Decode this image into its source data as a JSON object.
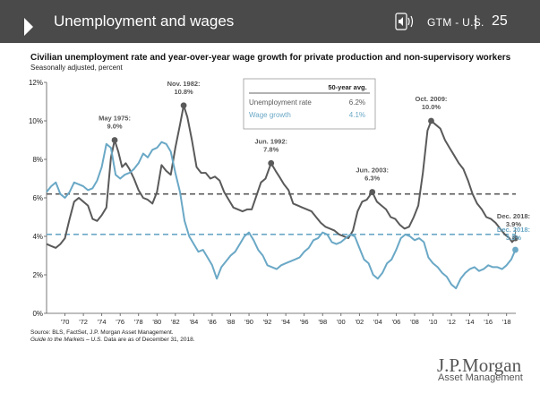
{
  "header": {
    "title": "Unemployment and wages",
    "speaker_icon": "speaker-icon",
    "section": "GTM - U.S.",
    "separator": "|",
    "page_number": "25",
    "background_color": "#4a4a4a"
  },
  "chart_title": "Civilian unemployment rate and year-over-year wage growth for private production and non-supervisory workers",
  "chart_subtitle": "Seasonally adjusted, percent",
  "source": {
    "line1": "Source: BLS, FactSet, J.P. Morgan Asset Management.",
    "line2_italic": "Guide to the Markets – U.S.",
    "line2_rest": "Data are as of December 31, 2018."
  },
  "logo": {
    "name": "J.P.Morgan",
    "tagline": "Asset Management"
  },
  "chart_data": {
    "type": "line",
    "x_range": [
      1968,
      2019
    ],
    "ylim": [
      0,
      12
    ],
    "y_ticks": [
      {
        "value": 0,
        "label": "0%"
      },
      {
        "value": 2,
        "label": "2%"
      },
      {
        "value": 4,
        "label": "4%"
      },
      {
        "value": 6,
        "label": "6%"
      },
      {
        "value": 8,
        "label": "8%"
      },
      {
        "value": 10,
        "label": "10%"
      },
      {
        "value": 12,
        "label": "12%"
      }
    ],
    "x_ticks": [
      {
        "value": 1970,
        "label": "'70"
      },
      {
        "value": 1972,
        "label": "'72"
      },
      {
        "value": 1974,
        "label": "'74"
      },
      {
        "value": 1976,
        "label": "'76"
      },
      {
        "value": 1978,
        "label": "'78"
      },
      {
        "value": 1980,
        "label": "'80"
      },
      {
        "value": 1982,
        "label": "'82"
      },
      {
        "value": 1984,
        "label": "'84"
      },
      {
        "value": 1986,
        "label": "'86"
      },
      {
        "value": 1988,
        "label": "'88"
      },
      {
        "value": 1990,
        "label": "'90"
      },
      {
        "value": 1992,
        "label": "'92"
      },
      {
        "value": 1994,
        "label": "'94"
      },
      {
        "value": 1996,
        "label": "'96"
      },
      {
        "value": 1998,
        "label": "'98"
      },
      {
        "value": 2000,
        "label": "'00"
      },
      {
        "value": 2002,
        "label": "'02"
      },
      {
        "value": 2004,
        "label": "'04"
      },
      {
        "value": 2006,
        "label": "'06"
      },
      {
        "value": 2008,
        "label": "'08"
      },
      {
        "value": 2010,
        "label": "'10"
      },
      {
        "value": 2012,
        "label": "'12"
      },
      {
        "value": 2014,
        "label": "'14"
      },
      {
        "value": 2016,
        "label": "'16"
      },
      {
        "value": 2018,
        "label": "'18"
      }
    ],
    "series": [
      {
        "name": "Unemployment rate",
        "color": "#5a5a5a",
        "average": 6.2,
        "points": [
          [
            1968.0,
            3.6
          ],
          [
            1968.5,
            3.5
          ],
          [
            1969.0,
            3.4
          ],
          [
            1969.5,
            3.6
          ],
          [
            1970.0,
            3.9
          ],
          [
            1970.5,
            4.9
          ],
          [
            1971.0,
            5.8
          ],
          [
            1971.5,
            6.0
          ],
          [
            1972.0,
            5.8
          ],
          [
            1972.5,
            5.6
          ],
          [
            1973.0,
            4.9
          ],
          [
            1973.5,
            4.8
          ],
          [
            1974.0,
            5.1
          ],
          [
            1974.5,
            5.5
          ],
          [
            1975.0,
            8.1
          ],
          [
            1975.4,
            9.0
          ],
          [
            1975.8,
            8.4
          ],
          [
            1976.2,
            7.6
          ],
          [
            1976.6,
            7.8
          ],
          [
            1977.0,
            7.5
          ],
          [
            1977.5,
            7.0
          ],
          [
            1978.0,
            6.4
          ],
          [
            1978.5,
            6.0
          ],
          [
            1979.0,
            5.9
          ],
          [
            1979.5,
            5.7
          ],
          [
            1980.0,
            6.3
          ],
          [
            1980.5,
            7.7
          ],
          [
            1981.0,
            7.4
          ],
          [
            1981.5,
            7.2
          ],
          [
            1982.0,
            8.6
          ],
          [
            1982.5,
            9.8
          ],
          [
            1982.9,
            10.8
          ],
          [
            1983.3,
            10.2
          ],
          [
            1983.8,
            9.0
          ],
          [
            1984.3,
            7.6
          ],
          [
            1984.8,
            7.3
          ],
          [
            1985.3,
            7.3
          ],
          [
            1985.8,
            7.0
          ],
          [
            1986.3,
            7.1
          ],
          [
            1986.8,
            6.9
          ],
          [
            1987.3,
            6.3
          ],
          [
            1987.8,
            5.9
          ],
          [
            1988.3,
            5.5
          ],
          [
            1988.8,
            5.4
          ],
          [
            1989.3,
            5.3
          ],
          [
            1989.8,
            5.4
          ],
          [
            1990.3,
            5.4
          ],
          [
            1990.8,
            6.1
          ],
          [
            1991.3,
            6.8
          ],
          [
            1991.8,
            7.0
          ],
          [
            1992.4,
            7.8
          ],
          [
            1992.9,
            7.4
          ],
          [
            1993.3,
            7.1
          ],
          [
            1993.8,
            6.7
          ],
          [
            1994.3,
            6.4
          ],
          [
            1994.8,
            5.7
          ],
          [
            1995.3,
            5.6
          ],
          [
            1995.8,
            5.5
          ],
          [
            1996.3,
            5.4
          ],
          [
            1996.8,
            5.3
          ],
          [
            1997.3,
            5.0
          ],
          [
            1997.8,
            4.7
          ],
          [
            1998.3,
            4.5
          ],
          [
            1998.8,
            4.4
          ],
          [
            1999.3,
            4.3
          ],
          [
            1999.8,
            4.1
          ],
          [
            2000.3,
            4.0
          ],
          [
            2000.8,
            3.9
          ],
          [
            2001.3,
            4.3
          ],
          [
            2001.8,
            5.3
          ],
          [
            2002.3,
            5.8
          ],
          [
            2002.8,
            5.9
          ],
          [
            2003.4,
            6.3
          ],
          [
            2003.9,
            5.8
          ],
          [
            2004.4,
            5.6
          ],
          [
            2004.9,
            5.4
          ],
          [
            2005.4,
            5.0
          ],
          [
            2005.9,
            4.9
          ],
          [
            2006.4,
            4.6
          ],
          [
            2006.9,
            4.4
          ],
          [
            2007.4,
            4.5
          ],
          [
            2007.9,
            5.0
          ],
          [
            2008.4,
            5.6
          ],
          [
            2008.9,
            7.3
          ],
          [
            2009.4,
            9.5
          ],
          [
            2009.8,
            10.0
          ],
          [
            2010.3,
            9.8
          ],
          [
            2010.8,
            9.6
          ],
          [
            2011.3,
            9.0
          ],
          [
            2011.8,
            8.6
          ],
          [
            2012.3,
            8.2
          ],
          [
            2012.8,
            7.8
          ],
          [
            2013.3,
            7.5
          ],
          [
            2013.8,
            6.9
          ],
          [
            2014.3,
            6.2
          ],
          [
            2014.8,
            5.7
          ],
          [
            2015.3,
            5.4
          ],
          [
            2015.8,
            5.0
          ],
          [
            2016.3,
            4.9
          ],
          [
            2016.8,
            4.7
          ],
          [
            2017.3,
            4.4
          ],
          [
            2017.8,
            4.1
          ],
          [
            2018.3,
            3.9
          ],
          [
            2018.6,
            3.7
          ],
          [
            2018.95,
            3.9
          ]
        ]
      },
      {
        "name": "Wage growth",
        "color": "#6aa8c6",
        "average": 4.1,
        "points": [
          [
            1968.0,
            6.3
          ],
          [
            1968.5,
            6.6
          ],
          [
            1969.0,
            6.8
          ],
          [
            1969.5,
            6.2
          ],
          [
            1970.0,
            6.0
          ],
          [
            1970.5,
            6.3
          ],
          [
            1971.0,
            6.8
          ],
          [
            1971.5,
            6.7
          ],
          [
            1972.0,
            6.6
          ],
          [
            1972.5,
            6.4
          ],
          [
            1973.0,
            6.5
          ],
          [
            1973.5,
            6.9
          ],
          [
            1974.0,
            7.6
          ],
          [
            1974.5,
            8.8
          ],
          [
            1975.0,
            8.6
          ],
          [
            1975.5,
            7.2
          ],
          [
            1976.0,
            7.0
          ],
          [
            1976.5,
            7.2
          ],
          [
            1977.0,
            7.3
          ],
          [
            1977.5,
            7.5
          ],
          [
            1978.0,
            7.8
          ],
          [
            1978.5,
            8.3
          ],
          [
            1979.0,
            8.1
          ],
          [
            1979.5,
            8.5
          ],
          [
            1980.0,
            8.6
          ],
          [
            1980.5,
            8.9
          ],
          [
            1981.0,
            8.8
          ],
          [
            1981.5,
            8.4
          ],
          [
            1982.0,
            7.3
          ],
          [
            1982.5,
            6.3
          ],
          [
            1983.0,
            4.8
          ],
          [
            1983.5,
            4.0
          ],
          [
            1984.0,
            3.6
          ],
          [
            1984.5,
            3.2
          ],
          [
            1985.0,
            3.3
          ],
          [
            1985.5,
            2.9
          ],
          [
            1986.0,
            2.5
          ],
          [
            1986.5,
            1.8
          ],
          [
            1987.0,
            2.4
          ],
          [
            1987.5,
            2.7
          ],
          [
            1988.0,
            3.0
          ],
          [
            1988.5,
            3.2
          ],
          [
            1989.0,
            3.6
          ],
          [
            1989.5,
            4.0
          ],
          [
            1990.0,
            4.2
          ],
          [
            1990.5,
            3.8
          ],
          [
            1991.0,
            3.3
          ],
          [
            1991.5,
            3.0
          ],
          [
            1992.0,
            2.5
          ],
          [
            1992.5,
            2.4
          ],
          [
            1993.0,
            2.3
          ],
          [
            1993.5,
            2.5
          ],
          [
            1994.0,
            2.6
          ],
          [
            1994.5,
            2.7
          ],
          [
            1995.0,
            2.8
          ],
          [
            1995.5,
            2.9
          ],
          [
            1996.0,
            3.2
          ],
          [
            1996.5,
            3.4
          ],
          [
            1997.0,
            3.8
          ],
          [
            1997.5,
            3.9
          ],
          [
            1998.0,
            4.2
          ],
          [
            1998.5,
            4.1
          ],
          [
            1999.0,
            3.7
          ],
          [
            1999.5,
            3.6
          ],
          [
            2000.0,
            3.7
          ],
          [
            2000.5,
            3.9
          ],
          [
            2001.0,
            4.1
          ],
          [
            2001.5,
            4.0
          ],
          [
            2002.0,
            3.4
          ],
          [
            2002.5,
            2.8
          ],
          [
            2003.0,
            2.6
          ],
          [
            2003.5,
            2.0
          ],
          [
            2004.0,
            1.8
          ],
          [
            2004.5,
            2.1
          ],
          [
            2005.0,
            2.6
          ],
          [
            2005.5,
            2.8
          ],
          [
            2006.0,
            3.3
          ],
          [
            2006.5,
            3.9
          ],
          [
            2007.0,
            4.1
          ],
          [
            2007.5,
            4.0
          ],
          [
            2008.0,
            3.8
          ],
          [
            2008.5,
            3.9
          ],
          [
            2009.0,
            3.7
          ],
          [
            2009.5,
            2.9
          ],
          [
            2010.0,
            2.6
          ],
          [
            2010.5,
            2.4
          ],
          [
            2011.0,
            2.1
          ],
          [
            2011.5,
            1.9
          ],
          [
            2012.0,
            1.5
          ],
          [
            2012.5,
            1.3
          ],
          [
            2013.0,
            1.8
          ],
          [
            2013.5,
            2.1
          ],
          [
            2014.0,
            2.3
          ],
          [
            2014.5,
            2.4
          ],
          [
            2015.0,
            2.2
          ],
          [
            2015.5,
            2.3
          ],
          [
            2016.0,
            2.5
          ],
          [
            2016.5,
            2.4
          ],
          [
            2017.0,
            2.4
          ],
          [
            2017.5,
            2.3
          ],
          [
            2018.0,
            2.5
          ],
          [
            2018.5,
            2.8
          ],
          [
            2018.95,
            3.3
          ]
        ]
      }
    ],
    "annotations": [
      {
        "x": 1975.4,
        "y": 9.0,
        "series": "Unemployment rate",
        "label_lines": [
          "May 1975:",
          "9.0%"
        ]
      },
      {
        "x": 1982.9,
        "y": 10.8,
        "series": "Unemployment rate",
        "label_lines": [
          "Nov. 1982:",
          "10.8%"
        ]
      },
      {
        "x": 1992.4,
        "y": 7.8,
        "series": "Unemployment rate",
        "label_lines": [
          "Jun. 1992:",
          "7.8%"
        ]
      },
      {
        "x": 2003.4,
        "y": 6.3,
        "series": "Unemployment rate",
        "label_lines": [
          "Jun. 2003:",
          "6.3%"
        ]
      },
      {
        "x": 2009.8,
        "y": 10.0,
        "series": "Unemployment rate",
        "label_lines": [
          "Oct. 2009:",
          "10.0%"
        ]
      },
      {
        "x": 2018.95,
        "y": 3.9,
        "series": "Unemployment rate",
        "label_lines": [
          "Dec. 2018:",
          "3.9%"
        ]
      },
      {
        "x": 2018.95,
        "y": 3.3,
        "series": "Wage growth",
        "label_lines": [
          "Dec. 2018:",
          "3.3%"
        ]
      }
    ],
    "legend_table": {
      "header": "50-year avg.",
      "rows": [
        {
          "label": "Unemployment rate",
          "value": "6.2%",
          "color": "#5a5a5a"
        },
        {
          "label": "Wage growth",
          "value": "4.1%",
          "color": "#6aa8c6"
        }
      ],
      "placement": "top-center"
    }
  }
}
